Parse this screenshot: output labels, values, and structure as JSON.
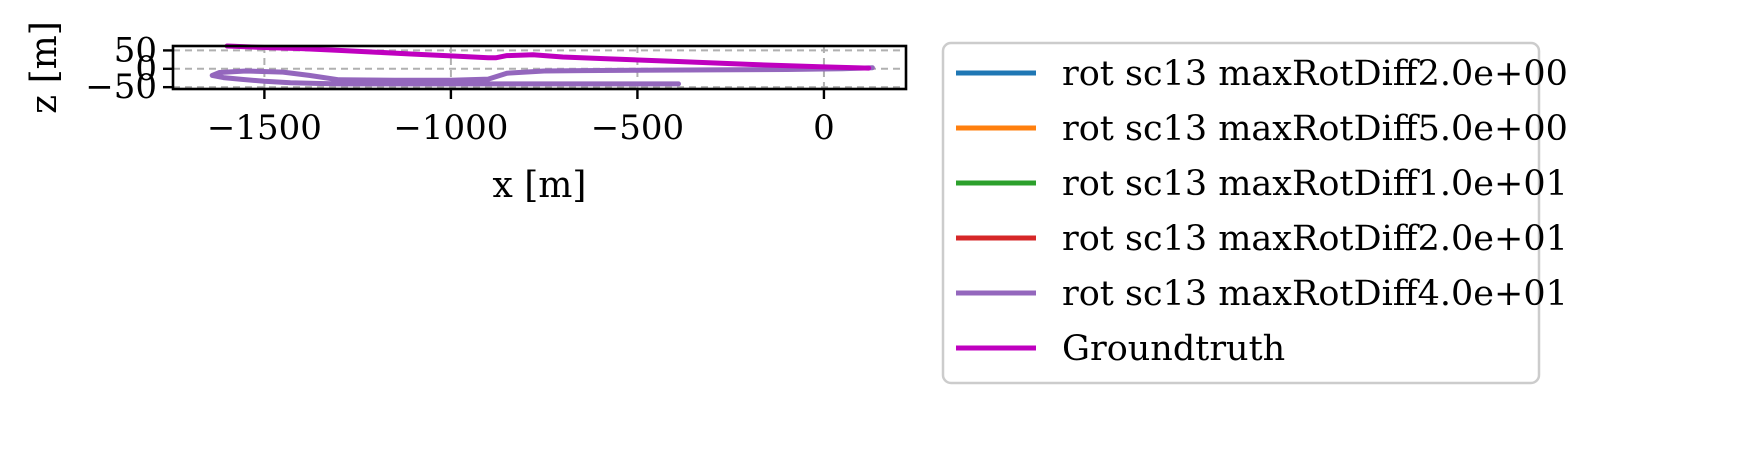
{
  "chart_data": {
    "type": "line",
    "title": "",
    "xlabel": "x [m]",
    "ylabel": "z [m]",
    "xlim": [
      -1745,
      220
    ],
    "ylim": [
      -55,
      62
    ],
    "x_ticks": [
      -1500,
      -1000,
      -500,
      0
    ],
    "x_tick_labels": [
      "−1500",
      "−1000",
      "−500",
      "0"
    ],
    "y_ticks": [
      50,
      0,
      -50
    ],
    "y_tick_labels": [
      "50",
      "0",
      "−50"
    ],
    "grid": true,
    "legend_position": "outside-right",
    "series": [
      {
        "name": "rot sc13 maxRotDiff2.0e+00",
        "color": "#1f77b4",
        "x": [],
        "y": []
      },
      {
        "name": "rot sc13 maxRotDiff5.0e+00",
        "color": "#ff7f0e",
        "x": [],
        "y": []
      },
      {
        "name": "rot sc13 maxRotDiff1.0e+01",
        "color": "#2ca02c",
        "x": [],
        "y": []
      },
      {
        "name": "rot sc13 maxRotDiff2.0e+01",
        "color": "#d62728",
        "x": [],
        "y": []
      },
      {
        "name": "rot sc13 maxRotDiff4.0e+01",
        "color": "#9467bd",
        "x": [
          130,
          50,
          -100,
          -300,
          -500,
          -650,
          -750,
          -850,
          -900,
          -1000,
          -1150,
          -1300,
          -1380,
          -1450,
          -1550,
          -1620,
          -1640,
          -1610,
          -1560,
          -1500,
          -1430,
          -1350,
          -1300,
          -1100,
          -900,
          -700,
          -500,
          -390
        ],
        "y": [
          3,
          0,
          -2,
          -3,
          -4,
          -5,
          -6,
          -12,
          -28,
          -31,
          -31,
          -30,
          -18,
          -9,
          -6,
          -10,
          -18,
          -24,
          -29,
          -34,
          -38,
          -40,
          -41,
          -41,
          -41,
          -41,
          -41,
          -41
        ]
      },
      {
        "name": "Groundtruth",
        "color": "#bf00bf",
        "x": [
          120,
          0,
          -200,
          -400,
          -600,
          -700,
          -780,
          -850,
          -880,
          -900,
          -1000,
          -1100,
          -1200,
          -1300,
          -1400,
          -1500,
          -1600
        ],
        "y": [
          2,
          5,
          12,
          20,
          28,
          32,
          38,
          36,
          30,
          30,
          35,
          40,
          45,
          50,
          55,
          58,
          62
        ]
      }
    ]
  }
}
